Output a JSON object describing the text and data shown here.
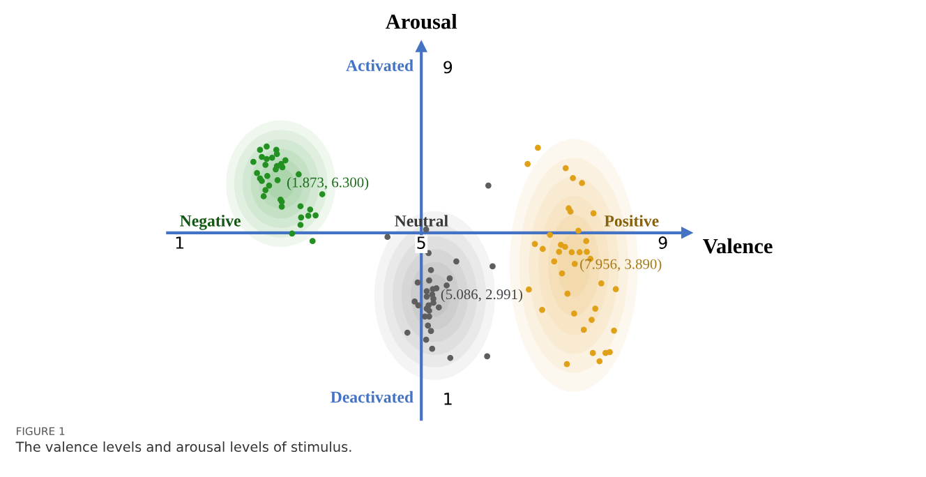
{
  "chart_data": {
    "type": "scatter",
    "xlabel": "Valence",
    "ylabel": "Arousal",
    "xlim": [
      0.8,
      9.4
    ],
    "ylim": [
      0.5,
      9.5
    ],
    "xticks": [
      1,
      5,
      9
    ],
    "yticks": [
      1,
      9
    ],
    "grid": false,
    "legend": false,
    "marker": "circle",
    "series": [
      {
        "color": "#229122",
        "x": [
          2.33,
          2.44,
          2.6,
          2.36,
          2.53,
          2.61,
          2.44,
          2.22,
          2.42,
          2.61,
          2.68,
          2.75,
          2.7,
          2.59,
          2.28,
          2.45,
          2.33,
          2.36,
          2.62,
          2.48,
          2.42,
          2.39,
          2.67,
          2.69,
          2.69,
          2.97,
          3.36,
          3.0,
          3.16,
          3.13,
          3.25,
          3.01,
          3.0,
          2.86,
          3.2
        ],
        "values": [
          7.0,
          7.08,
          7.0,
          6.83,
          6.81,
          6.9,
          6.78,
          6.71,
          6.64,
          6.61,
          6.66,
          6.75,
          6.58,
          6.53,
          6.44,
          6.37,
          6.31,
          6.25,
          6.27,
          6.14,
          6.03,
          5.88,
          5.8,
          5.75,
          5.63,
          6.41,
          5.93,
          5.64,
          5.56,
          5.41,
          5.42,
          5.37,
          5.19,
          4.98,
          4.8
        ]
      },
      {
        "color": "#5e5e5e",
        "x": [
          6.11,
          5.08,
          4.44,
          5.12,
          5.58,
          6.18,
          5.16,
          5.47,
          5.13,
          4.94,
          5.42,
          5.25,
          5.19,
          5.09,
          5.18,
          5.09,
          5.2,
          4.89,
          5.2,
          4.95,
          5.12,
          5.29,
          5.09,
          5.13,
          5.06,
          5.13,
          5.11,
          5.16,
          4.77,
          5.08,
          5.18,
          5.48,
          6.09
        ],
        "values": [
          6.14,
          5.08,
          4.9,
          4.51,
          4.31,
          4.19,
          4.1,
          3.9,
          3.85,
          3.8,
          3.73,
          3.66,
          3.64,
          3.59,
          3.51,
          3.46,
          3.41,
          3.34,
          3.31,
          3.25,
          3.25,
          3.2,
          3.17,
          3.12,
          2.98,
          2.98,
          2.76,
          2.63,
          2.59,
          2.42,
          2.2,
          1.98,
          2.02
        ]
      },
      {
        "color": "#e0a118",
        "x": [
          6.93,
          6.76,
          7.39,
          7.51,
          7.66,
          7.44,
          7.47,
          7.85,
          7.6,
          7.13,
          7.73,
          6.88,
          7.31,
          7.38,
          7.01,
          7.74,
          7.28,
          7.49,
          7.62,
          7.8,
          7.2,
          7.54,
          7.33,
          7.98,
          6.78,
          8.22,
          7.42,
          7.0,
          7.88,
          7.53,
          7.82,
          7.69,
          8.19,
          7.84,
          8.05,
          8.12,
          7.95,
          7.41
        ],
        "values": [
          7.05,
          6.66,
          6.56,
          6.32,
          6.2,
          5.59,
          5.51,
          5.47,
          5.05,
          4.95,
          4.8,
          4.73,
          4.71,
          4.66,
          4.61,
          4.54,
          4.54,
          4.53,
          4.53,
          4.37,
          4.31,
          4.25,
          4.02,
          3.78,
          3.63,
          3.64,
          3.53,
          3.14,
          3.17,
          3.05,
          2.9,
          2.66,
          2.64,
          2.1,
          2.1,
          2.12,
          1.9,
          1.83
        ]
      }
    ],
    "annotations": [
      "(1.873, 6.300)",
      "(5.086, 2.991)",
      "(7.956, 3.890)",
      "Negative",
      "Neutral",
      "Positive",
      "Activated",
      "Deactivated",
      "FIGURE 1",
      "The valence levels and arousal levels of stimulus."
    ]
  }
}
